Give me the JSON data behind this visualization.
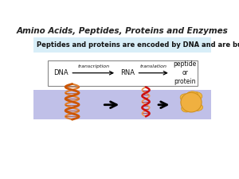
{
  "title": "Amino Acids, Peptides, Proteins and Enzymes",
  "title_fontsize": 7.5,
  "subtitle": "Peptides and proteins are encoded by DNA and are built from amino acids",
  "subtitle_fontsize": 6.0,
  "subtitle_bg": "#d8eef8",
  "dna_label": "DNA",
  "rna_label": "RNA",
  "peptide_label": "peptide\nor\nprotein",
  "transcription_label": "transcription",
  "translation_label": "translation",
  "label_fontsize": 6.0,
  "arrow_color": "#000000",
  "band_color": "#c0c0e8",
  "background_color": "#ffffff",
  "box_edge": "#888888"
}
